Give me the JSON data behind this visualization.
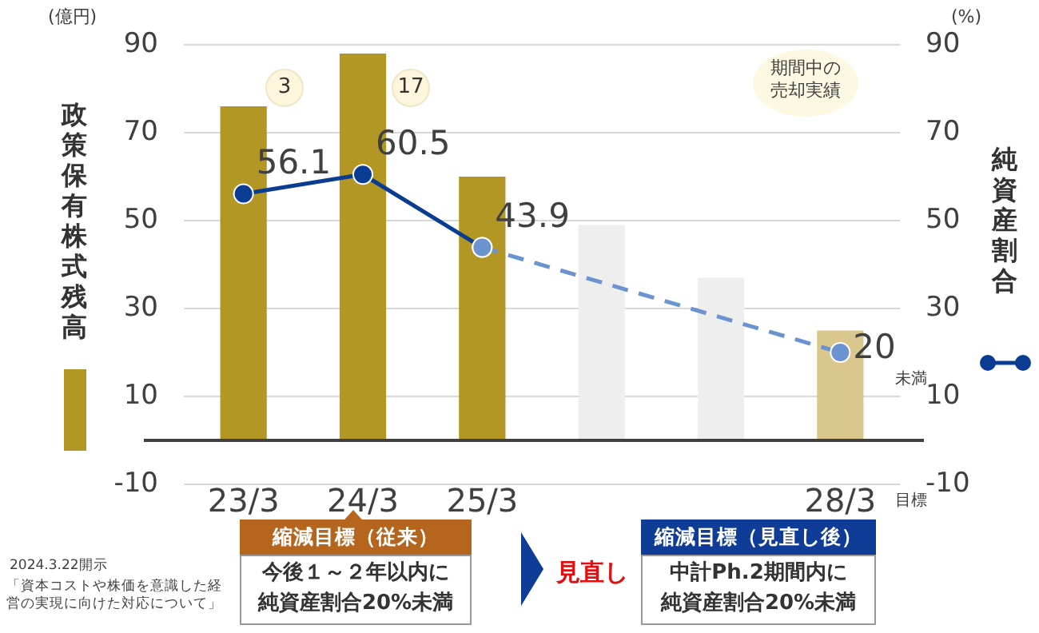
{
  "chart_data": {
    "type": "bar",
    "ylabel": "政策保有株式残高",
    "y2label": "純資産割合",
    "categories": [
      "23/3",
      "24/3",
      "25/3",
      null,
      null,
      "28/3"
    ],
    "series": [
      {
        "colors": [
          "#b39724",
          "#b39724",
          "#b39724",
          "#eeeeee",
          "#eeeeee",
          "#d9c78e"
        ],
        "values": [
          76,
          88,
          60,
          49,
          37,
          25
        ]
      },
      {
        "type": "line",
        "axis": "y2",
        "color": "#0a3d91",
        "line_style": "solid",
        "values": [
          56.1,
          60.5,
          43.9,
          null,
          null,
          null
        ],
        "value_labels": [
          "56.1",
          "60.5",
          "43.9",
          null,
          null,
          null
        ]
      },
      {
        "type": "line",
        "axis": "y2",
        "color": "#6a93d0",
        "line_style": "dashed",
        "values": [
          null,
          null,
          43.9,
          null,
          null,
          20
        ],
        "value_labels": [
          null,
          null,
          null,
          null,
          null,
          "20"
        ]
      }
    ],
    "ylim": [
      -10,
      90
    ],
    "yticks": [
      -10,
      10,
      30,
      50,
      70,
      90
    ],
    "y2lim": [
      -10,
      90
    ],
    "y2ticks": [
      -10,
      10,
      30,
      50,
      70,
      90
    ],
    "grid": "y",
    "marker": "circle",
    "ref_lines": [
      {
        "axis": "y",
        "value": 0,
        "color": "#404040"
      }
    ],
    "annotations": [
      "3",
      "17",
      "(億円)",
      "(%)",
      "期間中の売却実績",
      "未満",
      "目標",
      "2024.3.22開示",
      "「資本コストや株価を意識した経営の実現に向けた対応について」",
      "縮減目標（従来）",
      "今後１～２年以内に純資産割合20%未満",
      "見直し",
      "縮減目標（見直し後）",
      "中計Ph.2期間内に純資産割合20%未満"
    ]
  }
}
